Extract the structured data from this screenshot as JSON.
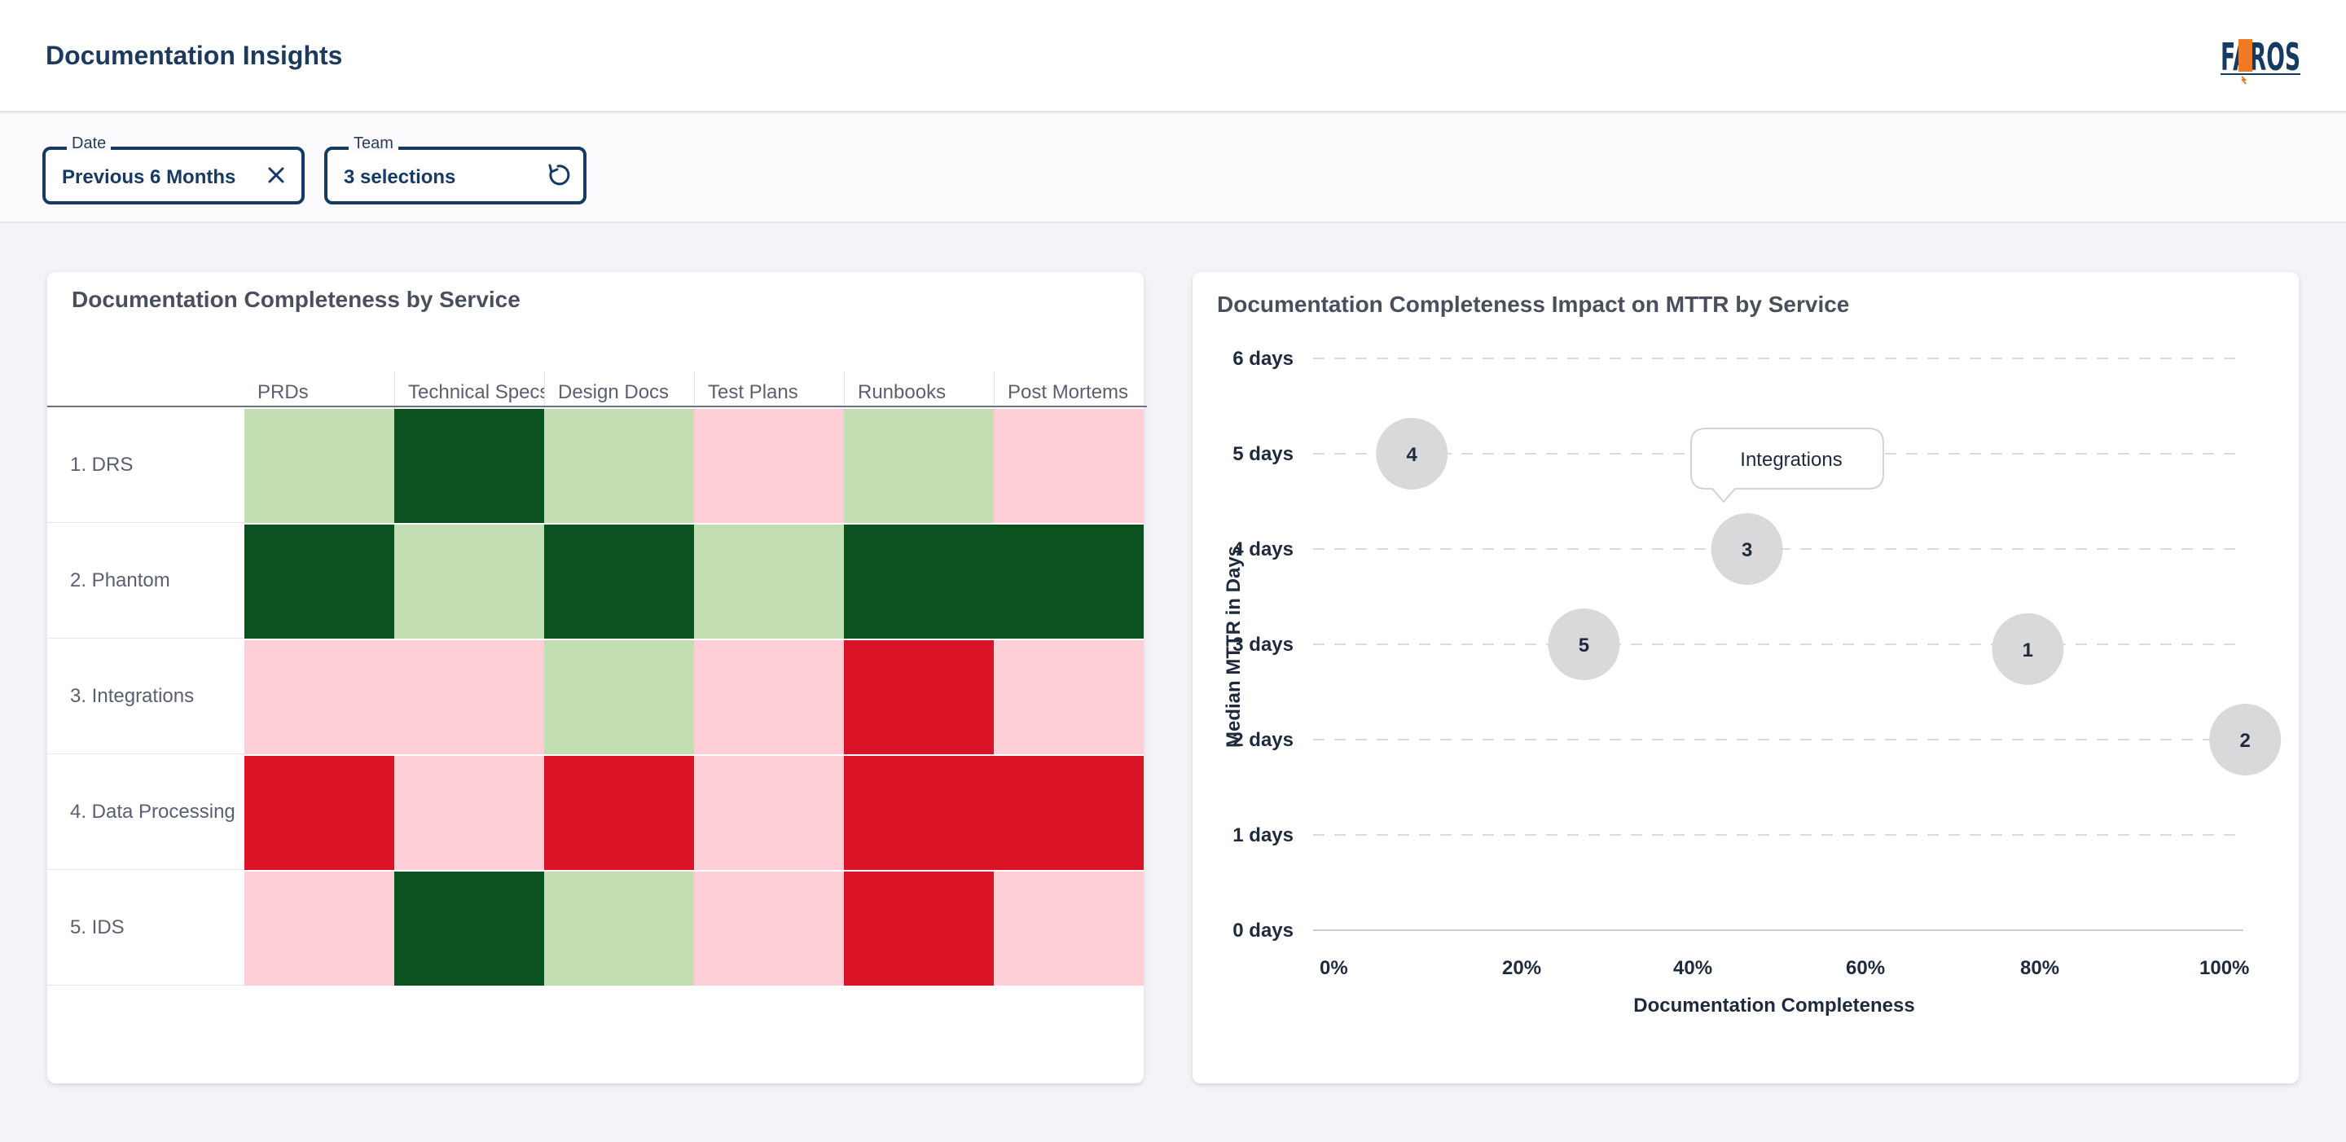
{
  "header": {
    "title": "Documentation Insights",
    "logo_text": "FAROS"
  },
  "filters": [
    {
      "legend": "Date",
      "value": "Previous 6 Months",
      "icon": "close-icon"
    },
    {
      "legend": "Team",
      "value": "3 selections",
      "icon": "reset-icon"
    }
  ],
  "heatmap": {
    "title": "Documentation Completeness by Service",
    "columns": [
      "PRDs",
      "Technical Specs",
      "Design Docs",
      "Test Plans",
      "Runbooks",
      "Post Mortems"
    ],
    "rows": [
      "1. DRS",
      "2. Phantom",
      "3. Integrations",
      "4. Data Processing",
      "5. IDS"
    ],
    "colors": {
      "complete": "#0c5221",
      "partial": "#c4deb3",
      "low": "#ffcfd8",
      "missing": "#db1326"
    },
    "cells": [
      [
        "partial",
        "complete",
        "partial",
        "low",
        "partial",
        "low"
      ],
      [
        "complete",
        "partial",
        "complete",
        "partial",
        "complete",
        "complete"
      ],
      [
        "low",
        "low",
        "partial",
        "low",
        "missing",
        "low"
      ],
      [
        "missing",
        "low",
        "missing",
        "low",
        "missing",
        "missing"
      ],
      [
        "low",
        "complete",
        "partial",
        "low",
        "missing",
        "low"
      ]
    ]
  },
  "scatter": {
    "title": "Documentation Completeness Impact on MTTR by Service",
    "tooltip": "Integrations",
    "chart_data": {
      "type": "scatter",
      "title": "Documentation Completeness Impact on MTTR by Service",
      "xlabel": "Documentation Completeness",
      "ylabel": "Median MTTR in Days",
      "xlim": [
        0,
        100
      ],
      "ylim": [
        0,
        6
      ],
      "x_ticks": [
        "0%",
        "20%",
        "40%",
        "60%",
        "80%",
        "100%"
      ],
      "y_ticks": [
        "0 days",
        "1 days",
        "2 days",
        "3 days",
        "4 days",
        "5 days",
        "6 days"
      ],
      "grid": true,
      "points": [
        {
          "label": "1",
          "x": 78,
          "y": 2.95
        },
        {
          "label": "2",
          "x": 102,
          "y": 2.0
        },
        {
          "label": "3",
          "x": 47,
          "y": 4.0
        },
        {
          "label": "4",
          "x": 10,
          "y": 5.0
        },
        {
          "label": "5",
          "x": 29,
          "y": 3.0
        }
      ]
    }
  }
}
